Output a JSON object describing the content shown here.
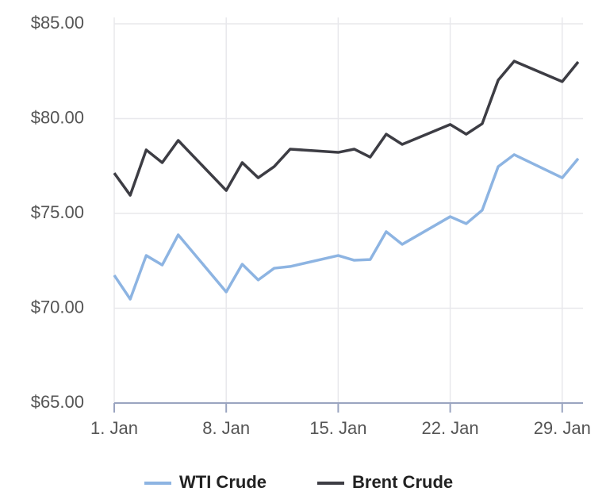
{
  "chart_data": {
    "type": "line",
    "x": [
      1,
      2,
      3,
      4,
      5,
      8,
      9,
      10,
      11,
      12,
      15,
      16,
      17,
      18,
      19,
      22,
      23,
      24,
      25,
      26,
      29,
      30
    ],
    "series": [
      {
        "name": "WTI Crude",
        "color": "#8db4e2",
        "values": [
          71.74,
          70.48,
          72.78,
          72.28,
          73.87,
          70.86,
          72.32,
          71.49,
          72.11,
          72.2,
          72.78,
          72.53,
          72.57,
          74.04,
          73.37,
          74.83,
          74.46,
          75.17,
          77.47,
          78.1,
          76.88,
          77.89
        ]
      },
      {
        "name": "Brent Crude",
        "color": "#3d3d44",
        "values": [
          77.13,
          75.96,
          78.35,
          77.68,
          78.85,
          76.21,
          77.68,
          76.88,
          77.47,
          78.39,
          78.22,
          78.39,
          77.97,
          79.18,
          78.64,
          79.69,
          79.18,
          79.73,
          82.03,
          83.03,
          81.95,
          82.99
        ]
      }
    ],
    "xlim": [
      1,
      30.3
    ],
    "xticks": [
      {
        "value": 1,
        "label": "1. Jan"
      },
      {
        "value": 8,
        "label": "8. Jan"
      },
      {
        "value": 15,
        "label": "15. Jan"
      },
      {
        "value": 22,
        "label": "22. Jan"
      },
      {
        "value": 29,
        "label": "29. Jan"
      }
    ],
    "ylim": [
      65,
      85
    ],
    "yticks": [
      {
        "value": 65,
        "label": "$65.00"
      },
      {
        "value": 70,
        "label": "$70.00"
      },
      {
        "value": 75,
        "label": "$75.00"
      },
      {
        "value": 80,
        "label": "$80.00"
      },
      {
        "value": 85,
        "label": "$85.00"
      }
    ],
    "grid": true,
    "legend": "bottom"
  }
}
